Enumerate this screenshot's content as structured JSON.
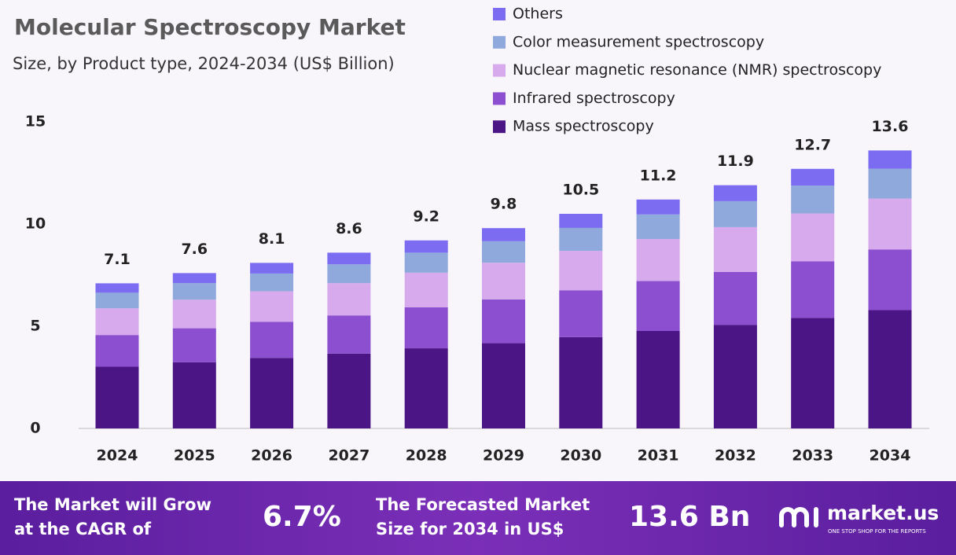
{
  "chart_data": {
    "type": "stacked-bar",
    "title": "Molecular Spectroscopy Market",
    "subtitle": "Size, by Product type, 2024-2034 (US$ Billion)",
    "categories": [
      "2024",
      "2025",
      "2026",
      "2027",
      "2028",
      "2029",
      "2030",
      "2031",
      "2032",
      "2033",
      "2034"
    ],
    "series": [
      {
        "name": "Mass spectroscopy",
        "color": "#4b1585",
        "values": [
          3.02,
          3.24,
          3.45,
          3.66,
          3.92,
          4.17,
          4.47,
          4.77,
          5.07,
          5.41,
          5.79
        ]
      },
      {
        "name": "Infrared spectroscopy",
        "color": "#8b4fd0",
        "values": [
          1.55,
          1.66,
          1.77,
          1.87,
          2.01,
          2.14,
          2.29,
          2.44,
          2.59,
          2.77,
          2.96
        ]
      },
      {
        "name": "Nuclear magnetic resonance (NMR) spectroscopy",
        "color": "#d6aaec",
        "values": [
          1.31,
          1.4,
          1.49,
          1.58,
          1.69,
          1.8,
          1.93,
          2.06,
          2.19,
          2.34,
          2.5
        ]
      },
      {
        "name": "Color measurement spectroscopy",
        "color": "#8fa9dd",
        "values": [
          0.76,
          0.81,
          0.87,
          0.92,
          0.98,
          1.05,
          1.12,
          1.2,
          1.27,
          1.36,
          1.46
        ]
      },
      {
        "name": "Others",
        "color": "#7b6cf1",
        "values": [
          0.46,
          0.49,
          0.52,
          0.57,
          0.6,
          0.64,
          0.69,
          0.73,
          0.78,
          0.82,
          0.89
        ]
      }
    ],
    "totals": [
      7.1,
      7.6,
      8.1,
      8.6,
      9.2,
      9.8,
      10.5,
      11.2,
      11.9,
      12.7,
      13.6
    ],
    "ylim": [
      0,
      15
    ],
    "yticks": [
      0,
      5,
      10,
      15
    ],
    "grid": false
  },
  "footer": {
    "cagr_text": [
      "The Market will Grow",
      "at the CAGR of"
    ],
    "cagr_value": "6.7%",
    "forecast_text": [
      "The Forecasted Market",
      "Size for 2034 in US$"
    ],
    "forecast_value": "13.6 Bn",
    "brand": "market.us",
    "tagline": "ONE STOP SHOP FOR THE REPORTS"
  }
}
